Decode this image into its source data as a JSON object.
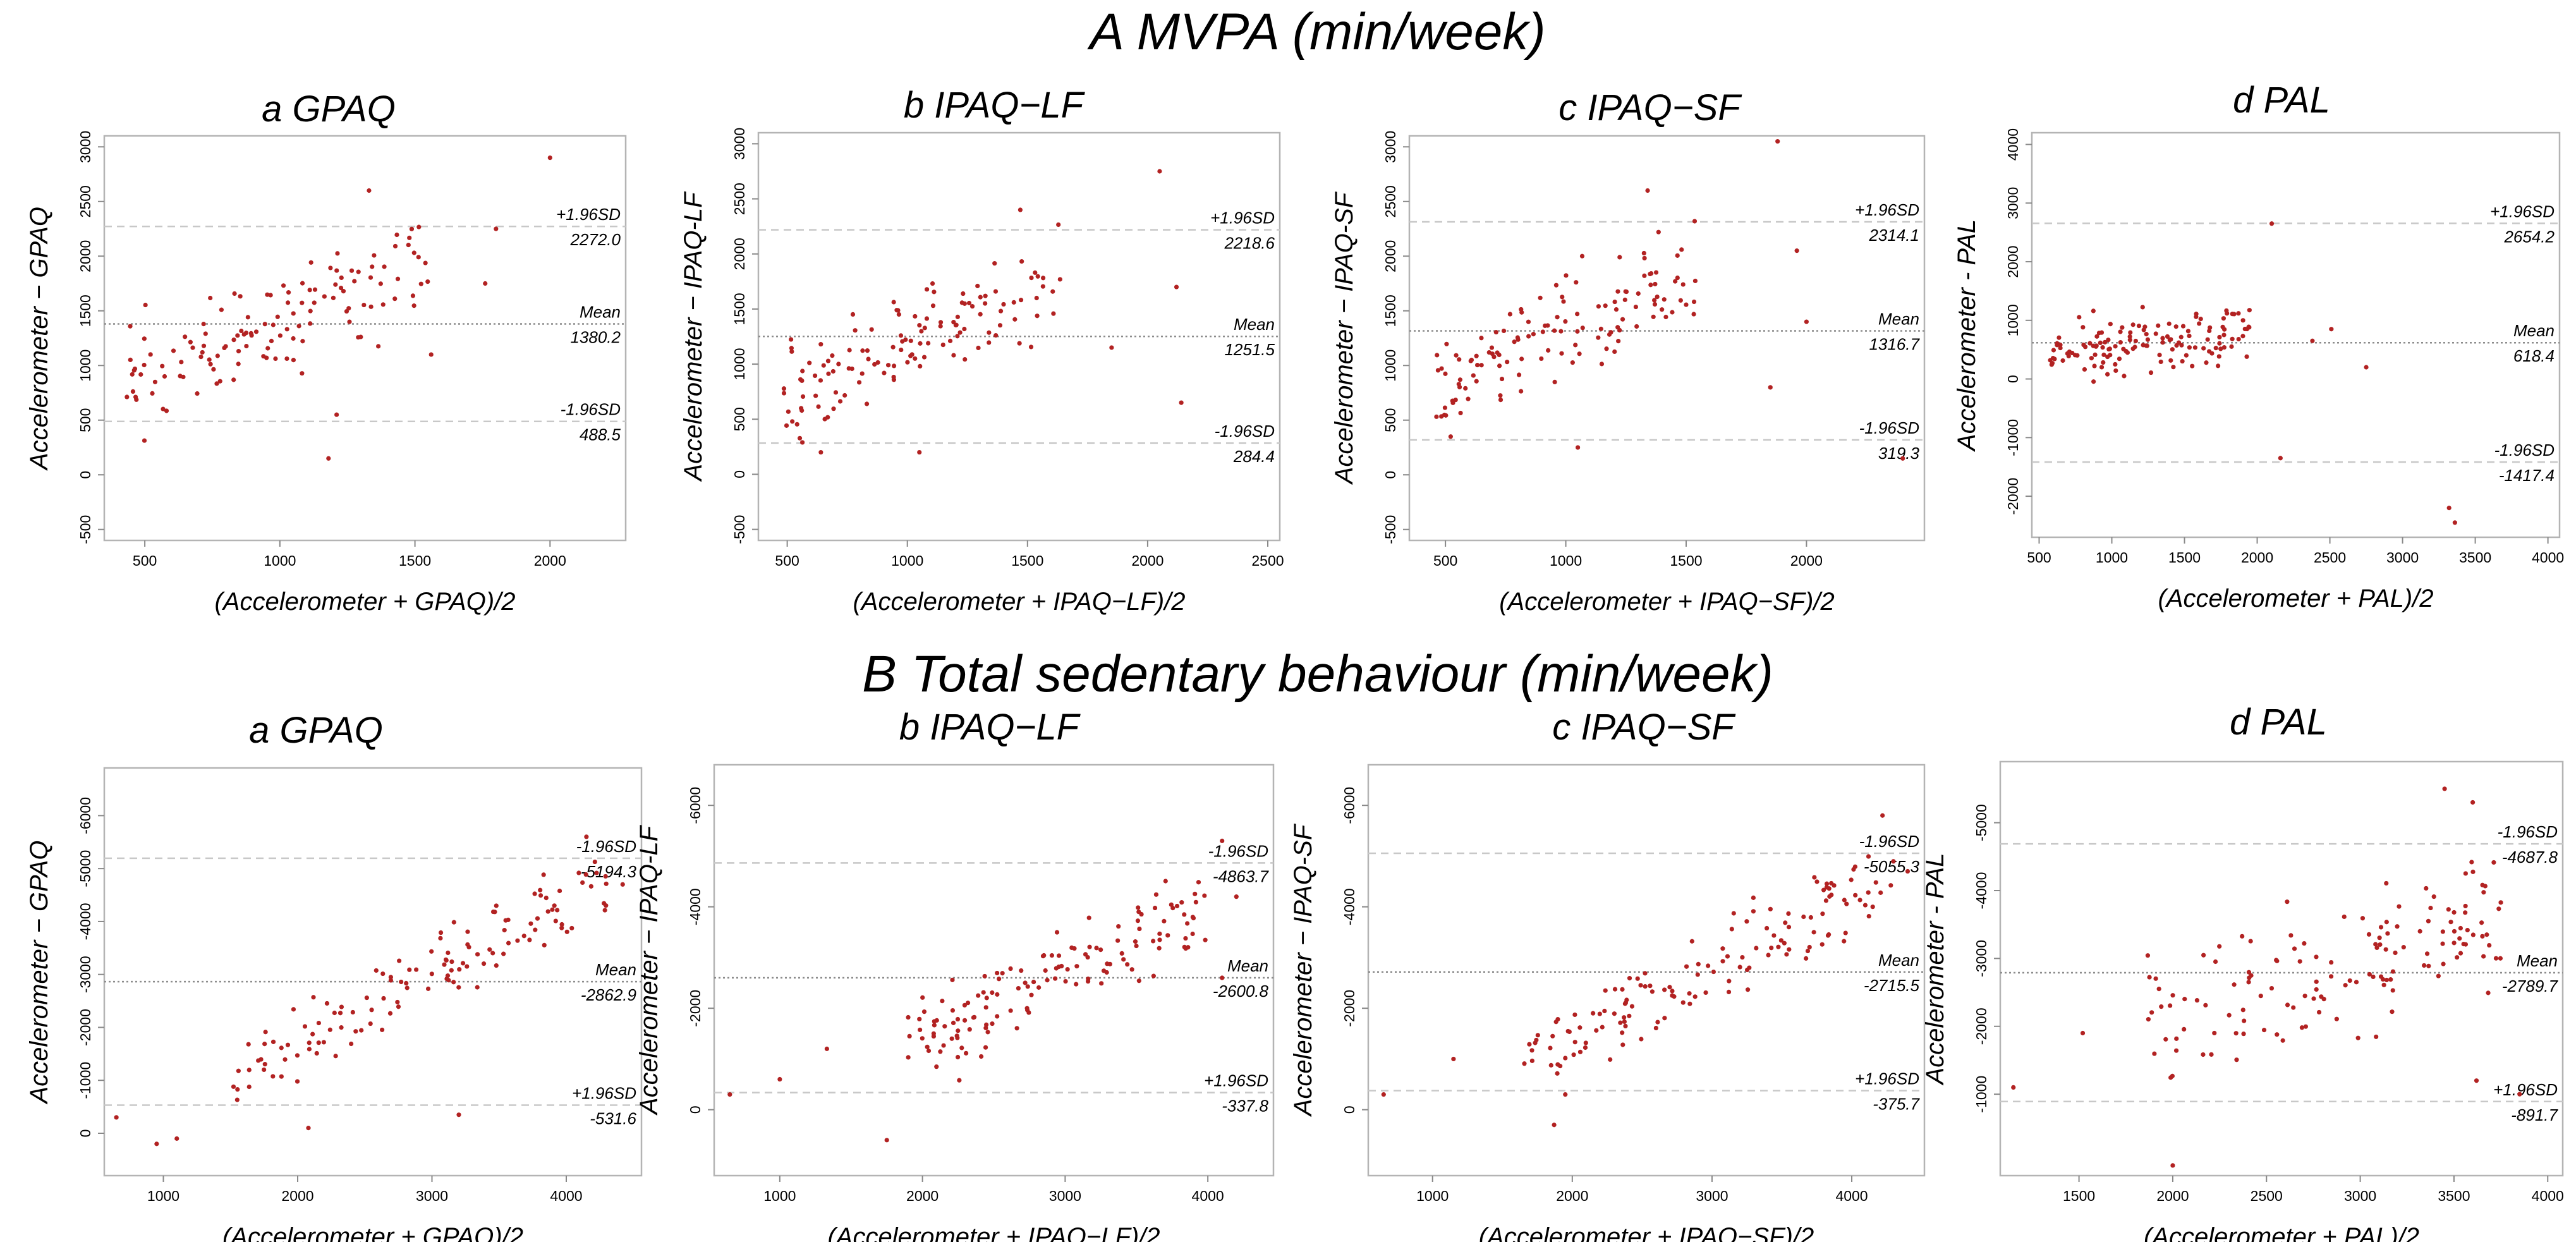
{
  "sections": [
    {
      "title": "A MVPA (min/week)",
      "panels": [
        {
          "title": "a GPAQ"
        },
        {
          "title": "b IPAQ−LF"
        },
        {
          "title": "c IPAQ−SF"
        },
        {
          "title": "d PAL"
        }
      ]
    },
    {
      "title": "B Total sedentary behaviour (min/week)",
      "panels": [
        {
          "title": "a GPAQ"
        },
        {
          "title": "b IPAQ−LF"
        },
        {
          "title": "c IPAQ−SF"
        },
        {
          "title": "d PAL"
        }
      ]
    }
  ],
  "colors": {
    "point": "#b22222",
    "mean_line": "#8c8c8c",
    "limit_line": "#c8c8c8",
    "frame": "#b4b4b4"
  },
  "chart_data": [
    {
      "type": "scatter",
      "title": "a GPAQ",
      "xlabel": "(Accelerometer + GPAQ)/2",
      "ylabel": "Accelerometer − GPAQ",
      "xlim": [
        350,
        2280
      ],
      "ylim": [
        -600,
        3100
      ],
      "yreverse": false,
      "xticks": [
        500,
        1000,
        1500,
        2000
      ],
      "yticks": [
        -500,
        0,
        500,
        1000,
        1500,
        2000,
        2500,
        3000
      ],
      "lines": [
        {
          "label": "+1.96SD",
          "value": 2272.0,
          "value_text": "2272.0",
          "style": "limit"
        },
        {
          "label": "Mean",
          "value": 1380.2,
          "value_text": "1380.2",
          "style": "mean"
        },
        {
          "label": "-1.96SD",
          "value": 488.5,
          "value_text": "488.5",
          "style": "limit"
        }
      ],
      "seed": 11,
      "n": 130,
      "x_range": [
        420,
        1560
      ],
      "slope": 0.95,
      "spread": 330,
      "outliers": [
        [
          2000,
          2900
        ],
        [
          1330,
          2600
        ],
        [
          1760,
          1750
        ],
        [
          1180,
          150
        ],
        [
          1560,
          1100
        ],
        [
          1800,
          2250
        ],
        [
          1210,
          550
        ]
      ]
    },
    {
      "type": "scatter",
      "title": "b IPAQ−LF",
      "xlabel": "(Accelerometer + IPAQ−LF)/2",
      "ylabel": "Accelerometer − IPAQ-LF",
      "xlim": [
        380,
        2550
      ],
      "ylim": [
        -600,
        3100
      ],
      "yreverse": false,
      "xticks": [
        500,
        1000,
        1500,
        2000,
        2500
      ],
      "yticks": [
        -500,
        0,
        500,
        1000,
        1500,
        2000,
        2500,
        3000
      ],
      "lines": [
        {
          "label": "+1.96SD",
          "value": 2218.6,
          "value_text": "2218.6",
          "style": "limit"
        },
        {
          "label": "Mean",
          "value": 1251.5,
          "value_text": "1251.5",
          "style": "mean"
        },
        {
          "label": "-1.96SD",
          "value": 284.4,
          "value_text": "284.4",
          "style": "limit"
        }
      ],
      "seed": 23,
      "n": 130,
      "x_range": [
        470,
        1640
      ],
      "slope": 0.9,
      "spread": 340,
      "outliers": [
        [
          2050,
          2750
        ],
        [
          1470,
          2400
        ],
        [
          2120,
          1700
        ],
        [
          2140,
          650
        ],
        [
          1850,
          1150
        ],
        [
          640,
          200
        ],
        [
          1050,
          200
        ]
      ]
    },
    {
      "type": "scatter",
      "title": "c IPAQ−SF",
      "xlabel": "(Accelerometer + IPAQ−SF)/2",
      "ylabel": "Accelerometer − IPAQ-SF",
      "xlim": [
        350,
        2490
      ],
      "ylim": [
        -600,
        3100
      ],
      "yreverse": false,
      "xticks": [
        500,
        1000,
        1500,
        2000
      ],
      "yticks": [
        -500,
        0,
        500,
        1000,
        1500,
        2000,
        2500,
        3000
      ],
      "lines": [
        {
          "label": "+1.96SD",
          "value": 2314.1,
          "value_text": "2314.1",
          "style": "limit"
        },
        {
          "label": "Mean",
          "value": 1316.7,
          "value_text": "1316.7",
          "style": "mean"
        },
        {
          "label": "-1.96SD",
          "value": 319.3,
          "value_text": "319.3",
          "style": "limit"
        }
      ],
      "seed": 37,
      "n": 130,
      "x_range": [
        450,
        1560
      ],
      "slope": 1.05,
      "spread": 330,
      "outliers": [
        [
          1880,
          3050
        ],
        [
          1340,
          2600
        ],
        [
          1960,
          2050
        ],
        [
          2000,
          1400
        ],
        [
          1850,
          800
        ],
        [
          2400,
          150
        ],
        [
          1050,
          250
        ]
      ]
    },
    {
      "type": "scatter",
      "title": "d PAL",
      "xlabel": "(Accelerometer + PAL)/2",
      "ylabel": "Accelerometer - PAL",
      "xlim": [
        450,
        4080
      ],
      "ylim": [
        -2700,
        4200
      ],
      "yreverse": false,
      "xticks": [
        500,
        1000,
        1500,
        2000,
        2500,
        3000,
        3500,
        4000
      ],
      "yticks": [
        -2000,
        -1000,
        0,
        1000,
        2000,
        3000,
        4000
      ],
      "lines": [
        {
          "label": "+1.96SD",
          "value": 2654.2,
          "value_text": "2654.2",
          "style": "limit"
        },
        {
          "label": "Mean",
          "value": 618.4,
          "value_text": "618.4",
          "style": "mean"
        },
        {
          "label": "-1.96SD",
          "value": -1417.4,
          "value_text": "-1417.4",
          "style": "limit"
        }
      ],
      "seed": 41,
      "n": 140,
      "x_range": [
        560,
        1960
      ],
      "slope": 0.35,
      "spread": 370,
      "outliers": [
        [
          2100,
          2650
        ],
        [
          2160,
          -1350
        ],
        [
          3320,
          -2200
        ],
        [
          3360,
          -2450
        ],
        [
          2510,
          850
        ],
        [
          2380,
          650
        ],
        [
          2750,
          200
        ]
      ]
    },
    {
      "type": "scatter",
      "title": "a GPAQ",
      "xlabel": "(Accelerometer + GPAQ)/2",
      "ylabel": "Accelerometer − GPAQ",
      "xlim": [
        560,
        4560
      ],
      "ylim": [
        800,
        -6900
      ],
      "yreverse": true,
      "xticks": [
        1000,
        2000,
        3000,
        4000
      ],
      "yticks": [
        -6000,
        -5000,
        -4000,
        -3000,
        -2000,
        -1000,
        0
      ],
      "lines": [
        {
          "label": "-1.96SD",
          "value": -5194.3,
          "value_text": "-5194.3",
          "style": "limit"
        },
        {
          "label": "Mean",
          "value": -2862.9,
          "value_text": "-2862.9",
          "style": "mean"
        },
        {
          "label": "+1.96SD",
          "value": -531.6,
          "value_text": "-531.6",
          "style": "limit"
        }
      ],
      "seed": 53,
      "n": 130,
      "x_range": [
        1500,
        4300
      ],
      "slope": -1.35,
      "spread": 560,
      "outliers": [
        [
          650,
          -300
        ],
        [
          950,
          200
        ],
        [
          1100,
          100
        ],
        [
          2080,
          -100
        ],
        [
          3200,
          -350
        ],
        [
          4150,
          -5600
        ],
        [
          4420,
          -4700
        ]
      ]
    },
    {
      "type": "scatter",
      "title": "b IPAQ−LF",
      "xlabel": "(Accelerometer + IPAQ−LF)/2",
      "ylabel": "Accelerometer − IPAQ-LF",
      "xlim": [
        540,
        4460
      ],
      "ylim": [
        1300,
        -6800
      ],
      "yreverse": true,
      "xticks": [
        1000,
        2000,
        3000,
        4000
      ],
      "yticks": [
        -6000,
        -4000,
        -2000,
        0
      ],
      "lines": [
        {
          "label": "-1.96SD",
          "value": -4863.7,
          "value_text": "-4863.7",
          "style": "limit"
        },
        {
          "label": "Mean",
          "value": -2600.8,
          "value_text": "-2600.8",
          "style": "mean"
        },
        {
          "label": "+1.96SD",
          "value": -337.8,
          "value_text": "-337.8",
          "style": "limit"
        }
      ],
      "seed": 67,
      "n": 140,
      "x_range": [
        1900,
        4000
      ],
      "slope": -1.3,
      "spread": 620,
      "outliers": [
        [
          650,
          -300
        ],
        [
          1000,
          -600
        ],
        [
          1330,
          -1200
        ],
        [
          1750,
          600
        ],
        [
          4100,
          -5300
        ],
        [
          4200,
          -4200
        ],
        [
          4100,
          -2600
        ]
      ]
    },
    {
      "type": "scatter",
      "title": "c IPAQ−SF",
      "xlabel": "(Accelerometer + IPAQ−SF)/2",
      "ylabel": "Accelerometer − IPAQ-SF",
      "xlim": [
        540,
        4520
      ],
      "ylim": [
        1300,
        -6800
      ],
      "yreverse": true,
      "xticks": [
        1000,
        2000,
        3000,
        4000
      ],
      "yticks": [
        -6000,
        -4000,
        -2000,
        0
      ],
      "lines": [
        {
          "label": "-1.96SD",
          "value": -5055.3,
          "value_text": "-5055.3",
          "style": "limit"
        },
        {
          "label": "Mean",
          "value": -2715.5,
          "value_text": "-2715.5",
          "style": "mean"
        },
        {
          "label": "+1.96SD",
          "value": -375.7,
          "value_text": "-375.7",
          "style": "limit"
        }
      ],
      "seed": 79,
      "n": 140,
      "x_range": [
        1650,
        4300
      ],
      "slope": -1.35,
      "spread": 600,
      "outliers": [
        [
          650,
          -300
        ],
        [
          1150,
          -1000
        ],
        [
          1870,
          300
        ],
        [
          1950,
          -300
        ],
        [
          4220,
          -5800
        ],
        [
          4400,
          -4700
        ],
        [
          4150,
          -4000
        ]
      ]
    },
    {
      "type": "scatter",
      "title": "d PAL",
      "xlabel": "(Accelerometer + PAL)/2",
      "ylabel": "Accelerometer - PAL",
      "xlim": [
        1080,
        4080
      ],
      "ylim": [
        200,
        -5900
      ],
      "yreverse": true,
      "xticks": [
        1500,
        2000,
        2500,
        3000,
        3500,
        4000
      ],
      "yticks": [
        -5000,
        -4000,
        -3000,
        -2000,
        -1000
      ],
      "lines": [
        {
          "label": "-1.96SD",
          "value": -4687.8,
          "value_text": "-4687.8",
          "style": "limit"
        },
        {
          "label": "Mean",
          "value": -2789.7,
          "value_text": "-2789.7",
          "style": "mean"
        },
        {
          "label": "+1.96SD",
          "value": -891.7,
          "value_text": "-891.7",
          "style": "limit"
        }
      ],
      "seed": 97,
      "n": 140,
      "x_range": [
        1850,
        3750
      ],
      "slope": -0.85,
      "spread": 720,
      "outliers": [
        [
          1150,
          -1100
        ],
        [
          1520,
          -1900
        ],
        [
          2000,
          50
        ],
        [
          3450,
          -5500
        ],
        [
          3600,
          -5300
        ],
        [
          3620,
          -1200
        ],
        [
          3850,
          -1000
        ]
      ]
    }
  ]
}
